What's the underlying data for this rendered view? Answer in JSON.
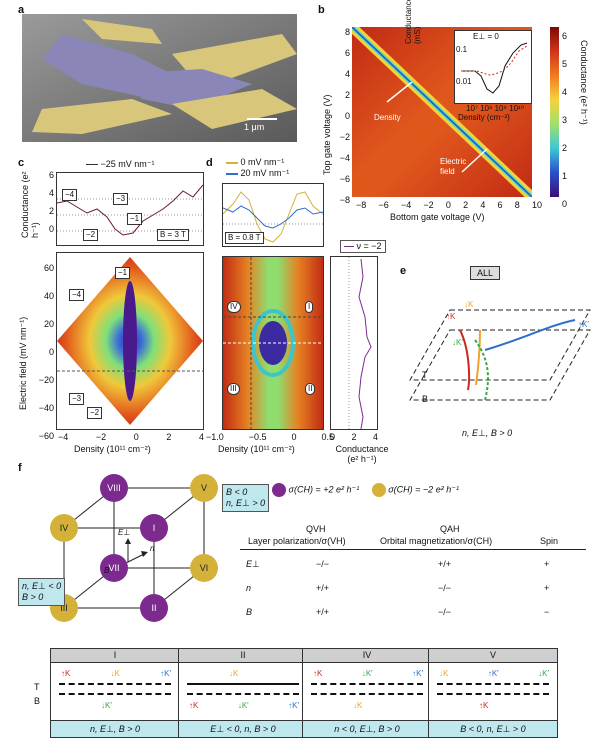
{
  "panels": {
    "a": "a",
    "b": "b",
    "c": "c",
    "d": "d",
    "e": "e",
    "f": "f"
  },
  "a": {
    "scale_bar": "1 μm"
  },
  "b": {
    "xlabel": "Bottom gate voltage (V)",
    "ylabel": "Top gate voltage (V)",
    "xticks": [
      "−8",
      "−6",
      "−4",
      "−2",
      "0",
      "2",
      "4",
      "6",
      "8",
      "10"
    ],
    "yticks": [
      "8",
      "6",
      "4",
      "2",
      "0",
      "−2",
      "−4",
      "−6",
      "−8"
    ],
    "colorbar_label": "Conductance (e² h⁻¹)",
    "colorbar_ticks": [
      "6",
      "5",
      "4",
      "3",
      "2",
      "1",
      "0"
    ],
    "annotations": [
      "Density",
      "Electric field"
    ],
    "inset": {
      "title": "E⊥ = 0",
      "ylabel": "Conductance (mS)",
      "xlabel": "Density (cm⁻²)",
      "yticks": [
        "0.1",
        "0.01"
      ],
      "xticks": [
        "10⁷",
        "10⁸",
        "10⁹",
        "10¹⁰"
      ]
    }
  },
  "c": {
    "legend": "−25 mV nm⁻¹",
    "top_ylabel": "Conductance (e² h⁻¹)",
    "top_yticks": [
      "6",
      "4",
      "2",
      "0"
    ],
    "field_label": "B = 3 T",
    "state_labels": [
      "−4",
      "−3",
      "−1",
      "−2"
    ],
    "map_labels": [
      "−1",
      "−4",
      "−3",
      "−2"
    ],
    "ylabel": "Electric field (mV nm⁻¹)",
    "yticks": [
      "60",
      "40",
      "20",
      "0",
      "−20",
      "−40",
      "−60"
    ],
    "xlabel": "Density (10¹¹ cm⁻²)",
    "xticks": [
      "−4",
      "−2",
      "0",
      "2",
      "4"
    ]
  },
  "d": {
    "legend": [
      "0 mV nm⁻¹",
      "20 mV nm⁻¹"
    ],
    "legend_colors": [
      "#d4b23a",
      "#2e6fc9"
    ],
    "field_label": "B = 0.8 T",
    "nu_label": "ν = −2",
    "markers": [
      "IV",
      "I",
      "III",
      "II"
    ],
    "xlabel": "Density (10¹¹ cm⁻²)",
    "xticks": [
      "−1.0",
      "−0.5",
      "0",
      "0.5"
    ],
    "side_xlabel": "Conductance (e² h⁻¹)",
    "side_xticks": [
      "0",
      "2",
      "4"
    ]
  },
  "e": {
    "all_label": "ALL",
    "T": "T",
    "B": "B",
    "caption": "n, E⊥, B > 0",
    "valleys": [
      "↓K",
      "↑K",
      "↓K′",
      "↑K′"
    ]
  },
  "f": {
    "vertices": [
      "VIII",
      "V",
      "IV",
      "I",
      "VII",
      "VI",
      "III",
      "II"
    ],
    "axes": [
      "E⊥",
      "n",
      "B"
    ],
    "box_top": [
      "B < 0",
      "n, E⊥ > 0"
    ],
    "box_left": [
      "n, E⊥ < 0",
      "B > 0"
    ],
    "legend": [
      {
        "label": "σ(CH) = +2 e² h⁻¹",
        "color": "#7d2a8f"
      },
      {
        "label": "σ(CH) = −2 e² h⁻¹",
        "color": "#d4b23a"
      }
    ],
    "table": {
      "group1": "QVH",
      "group2": "QAH",
      "headers": [
        "",
        "Layer polarization/σ(VH)",
        "Orbital magnetization/σ(CH)",
        "Spin"
      ],
      "rows": [
        [
          "E⊥",
          "−/−",
          "+/+",
          "+"
        ],
        [
          "n",
          "+/+",
          "−/−",
          "+"
        ],
        [
          "B",
          "+/+",
          "−/−",
          "−"
        ]
      ]
    }
  },
  "g": {
    "TB": [
      "T",
      "B"
    ],
    "boxes": [
      {
        "title": "I",
        "top": [
          "↑K",
          "↓K",
          "↑K′"
        ],
        "bottom": [
          "↓K′"
        ],
        "caption": "n, E⊥, B > 0"
      },
      {
        "title": "II",
        "top": [
          "↓K"
        ],
        "bottom": [
          "↑K",
          "↓K′",
          "↑K′"
        ],
        "caption": "E⊥ < 0, n, B > 0"
      },
      {
        "title": "IV",
        "top": [
          "↑K",
          "↓K′",
          "↑K′"
        ],
        "bottom": [
          "↓K"
        ],
        "caption": "n < 0, E⊥, B > 0"
      },
      {
        "title": "V",
        "top": [
          "↓K",
          "↑K′",
          "↓K′"
        ],
        "bottom": [
          "↑K"
        ],
        "caption": "B < 0, n, E⊥ > 0"
      }
    ]
  }
}
